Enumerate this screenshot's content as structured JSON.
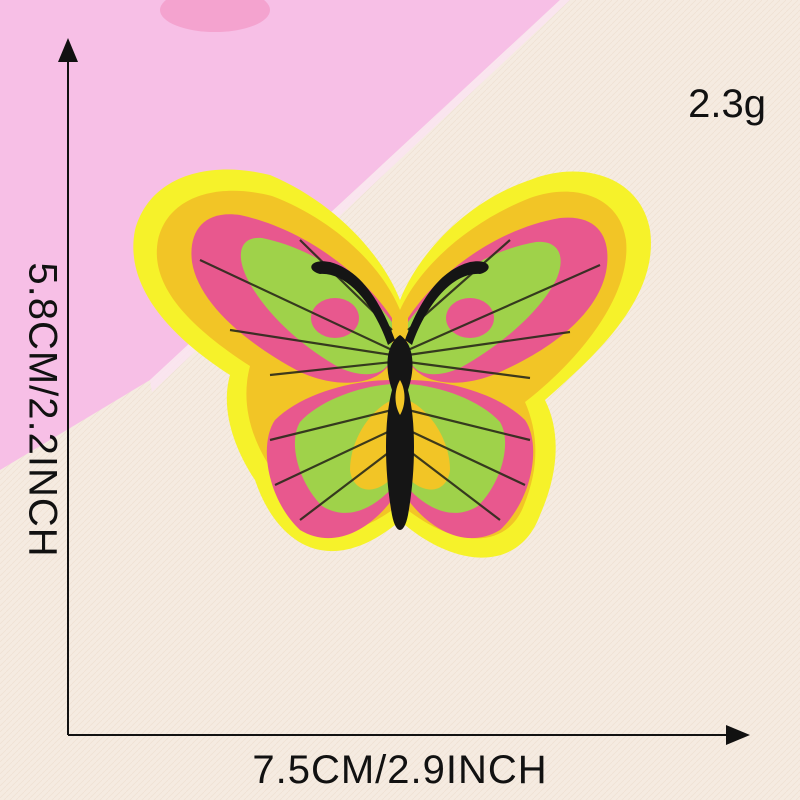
{
  "product": {
    "weight": "2.3g",
    "width_label": "7.5CM/2.9INCH",
    "height_label": "5.8CM/2.2INCH"
  },
  "colors": {
    "pink_backdrop": "#f7bfe6",
    "fabric": "#f5ebe1",
    "patch_border": "#f6f22a",
    "patch_gold": "#f2c526",
    "wing_green": "#9fd24a",
    "wing_pink": "#e8588e",
    "body": "#151515",
    "arrows": "#111111"
  },
  "icons": [
    "butterfly-patch-icon",
    "arrow-up-icon",
    "arrow-right-icon"
  ]
}
